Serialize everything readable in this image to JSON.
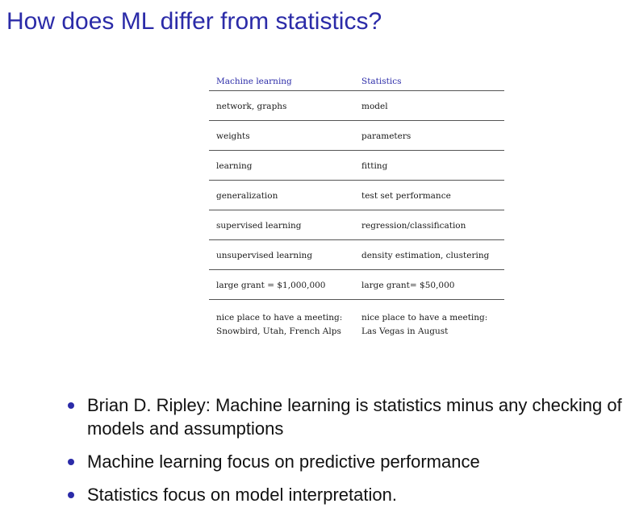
{
  "slide": {
    "title": "How does ML differ from statistics?"
  },
  "table": {
    "headers": [
      "Machine learning",
      "Statistics"
    ],
    "rows": [
      [
        "network, graphs",
        "model"
      ],
      [
        "weights",
        "parameters"
      ],
      [
        "learning",
        "fitting"
      ],
      [
        "generalization",
        "test set performance"
      ],
      [
        "supervised learning",
        "regression/classification"
      ],
      [
        "unsupervised learning",
        "density estimation, clustering"
      ],
      [
        "large grant = $1,000,000",
        "large grant= $50,000"
      ]
    ],
    "last_row": {
      "ml_line1": "nice place to have a meeting:",
      "ml_line2": "Snowbird, Utah, French Alps",
      "stats_line1": "nice place to have a meeting:",
      "stats_line2": "Las Vegas in August"
    }
  },
  "bullets": [
    "Brian D. Ripley: Machine learning is statistics minus any checking of models and assumptions",
    "Machine learning focus on predictive performance",
    "Statistics focus on model interpretation."
  ],
  "colors": {
    "accent": "#2b2ba8",
    "text": "#111111"
  }
}
